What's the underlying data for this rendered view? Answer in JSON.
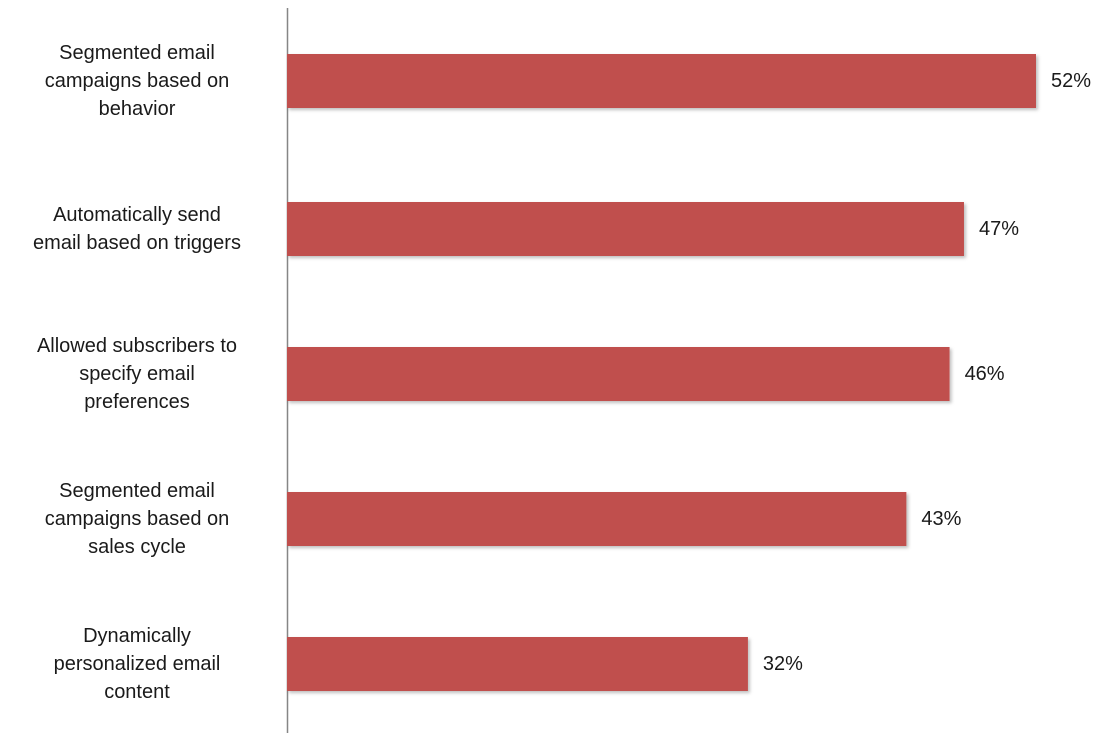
{
  "chart_data": {
    "type": "bar",
    "orientation": "horizontal",
    "title": "",
    "xlabel": "",
    "ylabel": "",
    "categories": [
      "Segmented email campaigns based on behavior",
      "Automatically send email based on triggers",
      "Allowed subscribers to specify email preferences",
      "Segmented email campaigns based on sales cycle",
      "Dynamically personalized email content"
    ],
    "category_lines": [
      [
        "Segmented email",
        "campaigns based on",
        "behavior"
      ],
      [
        "Automatically send",
        "email based on triggers"
      ],
      [
        "Allowed subscribers to",
        "specify email",
        "preferences"
      ],
      [
        "Segmented email",
        "campaigns based on",
        "sales cycle"
      ],
      [
        "Dynamically",
        "personalized email",
        "content"
      ]
    ],
    "values": [
      52,
      47,
      46,
      43,
      32
    ],
    "value_labels": [
      "52%",
      "47%",
      "46%",
      "43%",
      "32%"
    ],
    "xlim": [
      0,
      52
    ],
    "grid": false,
    "legend": "none",
    "bar_color": "#c0504d",
    "axis_color": "#868686"
  }
}
